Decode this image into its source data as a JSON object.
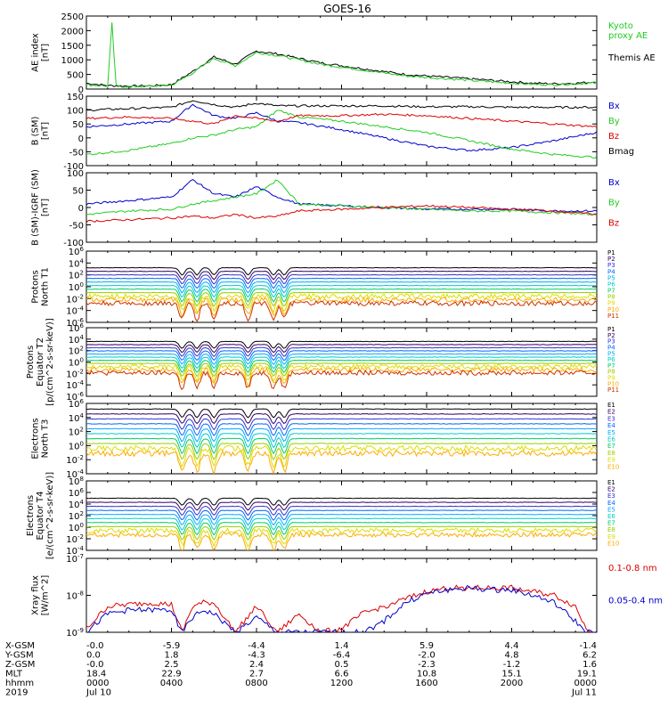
{
  "title": "GOES-16",
  "colors": {
    "black": "#000000",
    "blue": "#0000cc",
    "green": "#22cc22",
    "red": "#dd0000",
    "fluxRamp": [
      "#000000",
      "#330066",
      "#3333cc",
      "#0066ff",
      "#00aaff",
      "#00cccc",
      "#00cc66",
      "#99cc00",
      "#dddd00",
      "#ffaa00",
      "#cc3300"
    ]
  },
  "x_axis": {
    "time_labels": [
      "0000",
      "0400",
      "0800",
      "1200",
      "1600",
      "2000",
      "0000"
    ],
    "date_left": "Jul 10",
    "date_right": "Jul 11",
    "rows": [
      {
        "name": "X-GSM",
        "values": [
          "-0.0",
          "-5.9",
          "-4.4",
          "1.4",
          "5.9",
          "4.4",
          "-1.4"
        ]
      },
      {
        "name": "Y-GSM",
        "values": [
          "0.0",
          "1.8",
          "-4.3",
          "-6.4",
          "-2.0",
          "4.8",
          "6.2"
        ]
      },
      {
        "name": "Z-GSM",
        "values": [
          "-0.0",
          "2.5",
          "2.4",
          "0.5",
          "-2.3",
          "-1.2",
          "1.6"
        ]
      },
      {
        "name": "MLT",
        "values": [
          "18.4",
          "22.9",
          "2.7",
          "6.6",
          "10.8",
          "15.1",
          "19.1"
        ]
      },
      {
        "name": "hhmm",
        "values": [
          "0000",
          "0400",
          "0800",
          "1200",
          "1600",
          "2000",
          "0000"
        ]
      },
      {
        "name": "2019",
        "values": [
          "Jul 10",
          "",
          "",
          "",
          "",
          "",
          "Jul 11"
        ]
      }
    ]
  },
  "chart_data": [
    {
      "type": "line",
      "ylabel": "AE index\n[nT]",
      "ylim": [
        0,
        2500
      ],
      "y_ticks": [
        "0",
        "500",
        "1000",
        "1500",
        "2000",
        "2500"
      ],
      "legend": [
        {
          "text": "Kyoto\nproxy AE",
          "color": "#22cc22"
        },
        {
          "text": "Themis AE",
          "color": "#000000"
        }
      ],
      "series": [
        {
          "name": "Themis AE",
          "color": "#000000",
          "x": [
            0,
            1,
            2,
            3,
            4,
            5,
            6,
            7,
            8,
            9,
            10,
            11,
            12,
            13,
            14,
            15,
            16,
            17,
            18,
            19,
            20,
            21,
            22,
            23,
            24
          ],
          "y": [
            200,
            120,
            100,
            110,
            150,
            600,
            1100,
            850,
            1300,
            1200,
            1050,
            900,
            800,
            700,
            600,
            500,
            450,
            400,
            350,
            300,
            250,
            200,
            180,
            200,
            250
          ]
        },
        {
          "name": "Kyoto proxy AE",
          "color": "#22cc22",
          "x": [
            0,
            1,
            1.2,
            1.4,
            2,
            3,
            4,
            5,
            6,
            7,
            8,
            9,
            10,
            11,
            12,
            13,
            14,
            15,
            16,
            17,
            18,
            19,
            20,
            21,
            22,
            23,
            24
          ],
          "y": [
            150,
            100,
            2250,
            100,
            80,
            100,
            130,
            550,
            1050,
            800,
            1250,
            1150,
            1000,
            850,
            750,
            650,
            550,
            450,
            400,
            350,
            300,
            250,
            200,
            160,
            150,
            180,
            220
          ]
        }
      ]
    },
    {
      "type": "line",
      "ylabel": "B (SM)\n[nT]",
      "ylim": [
        -100,
        150
      ],
      "y_ticks": [
        "-100",
        "-50",
        "0",
        "50",
        "100",
        "150"
      ],
      "legend": [
        {
          "text": "Bx",
          "color": "#0000cc"
        },
        {
          "text": "By",
          "color": "#22cc22"
        },
        {
          "text": "Bz",
          "color": "#dd0000"
        },
        {
          "text": "Bmag",
          "color": "#000000"
        }
      ],
      "series": [
        {
          "name": "Bmag",
          "color": "#000000",
          "x": [
            0,
            2,
            4,
            5,
            6,
            7,
            8,
            9,
            10,
            12,
            14,
            16,
            18,
            20,
            22,
            24
          ],
          "y": [
            100,
            105,
            110,
            135,
            120,
            110,
            125,
            115,
            115,
            115,
            115,
            112,
            112,
            110,
            110,
            110
          ]
        },
        {
          "name": "Bx",
          "color": "#0000cc",
          "x": [
            0,
            2,
            4,
            5,
            6,
            7,
            8,
            9,
            10,
            12,
            14,
            16,
            18,
            20,
            22,
            24
          ],
          "y": [
            40,
            50,
            60,
            120,
            80,
            70,
            90,
            60,
            55,
            30,
            0,
            -30,
            -45,
            -35,
            -10,
            20
          ]
        },
        {
          "name": "By",
          "color": "#22cc22",
          "x": [
            0,
            2,
            4,
            5,
            6,
            7,
            8,
            9,
            10,
            12,
            14,
            16,
            18,
            20,
            22,
            24
          ],
          "y": [
            -60,
            -45,
            -20,
            0,
            10,
            30,
            40,
            100,
            75,
            60,
            40,
            20,
            -10,
            -40,
            -60,
            -70
          ]
        },
        {
          "name": "Bz",
          "color": "#dd0000",
          "x": [
            0,
            2,
            4,
            5,
            6,
            7,
            8,
            9,
            10,
            12,
            14,
            16,
            18,
            20,
            22,
            24
          ],
          "y": [
            70,
            75,
            70,
            60,
            50,
            80,
            70,
            60,
            80,
            80,
            85,
            80,
            70,
            60,
            50,
            40
          ]
        }
      ]
    },
    {
      "type": "line",
      "ylabel": "B (SM)-IGRF (SM)\n[nT]",
      "ylim": [
        -100,
        100
      ],
      "y_ticks": [
        "-100",
        "-50",
        "0",
        "50",
        "100"
      ],
      "legend": [
        {
          "text": "Bx",
          "color": "#0000cc"
        },
        {
          "text": "By",
          "color": "#22cc22"
        },
        {
          "text": "Bz",
          "color": "#dd0000"
        }
      ],
      "series": [
        {
          "name": "Bx",
          "color": "#0000cc",
          "x": [
            0,
            2,
            4,
            5,
            6,
            7,
            8,
            9,
            10,
            12,
            14,
            16,
            18,
            20,
            22,
            24
          ],
          "y": [
            10,
            20,
            30,
            80,
            40,
            30,
            60,
            30,
            10,
            5,
            0,
            -5,
            -5,
            -5,
            -10,
            -10
          ]
        },
        {
          "name": "By",
          "color": "#22cc22",
          "x": [
            0,
            2,
            4,
            5,
            6,
            7,
            8,
            9,
            10,
            12,
            14,
            16,
            18,
            20,
            22,
            24
          ],
          "y": [
            -20,
            -10,
            -5,
            10,
            20,
            30,
            40,
            80,
            10,
            5,
            0,
            -5,
            -10,
            -10,
            -15,
            -20
          ]
        },
        {
          "name": "Bz",
          "color": "#dd0000",
          "x": [
            0,
            2,
            4,
            5,
            6,
            7,
            8,
            9,
            10,
            12,
            14,
            16,
            18,
            20,
            22,
            24
          ],
          "y": [
            -40,
            -35,
            -30,
            -25,
            -30,
            -20,
            -30,
            -25,
            -10,
            -5,
            0,
            5,
            0,
            -5,
            -10,
            -20
          ]
        }
      ]
    },
    {
      "type": "line",
      "ylabel": "Protons\nNorth T1",
      "log": true,
      "ylim_exp": [
        -6,
        6
      ],
      "y_ticks": [
        "10^-6",
        "10^-4",
        "10^-2",
        "10^0",
        "10^2",
        "10^4",
        "10^6"
      ],
      "legend": [
        "P1",
        "P2",
        "P3",
        "P4",
        "P5",
        "P6",
        "P7",
        "P8",
        "P9",
        "P10",
        "P11"
      ],
      "top_log": 3.2,
      "step": 0.6,
      "noise_from": 8
    },
    {
      "type": "line",
      "ylabel": "Protons\nEquator T2\n[p/(cm^2-s-sr-keV)]",
      "log": true,
      "ylim_exp": [
        -6,
        6
      ],
      "y_ticks": [
        "10^-6",
        "10^-4",
        "10^-2",
        "10^0",
        "10^2",
        "10^4",
        "10^6"
      ],
      "legend": [
        "P1",
        "P2",
        "P3",
        "P4",
        "P5",
        "P6",
        "P7",
        "P8",
        "P9",
        "P10",
        "P11"
      ],
      "top_log": 3.6,
      "step": 0.55,
      "noise_from": 8
    },
    {
      "type": "line",
      "ylabel": "Electrons\nNorth T3",
      "log": true,
      "ylim_exp": [
        -4,
        6
      ],
      "y_ticks": [
        "10^-4",
        "10^-2",
        "10^0",
        "10^2",
        "10^4",
        "10^6"
      ],
      "legend": [
        "E1",
        "E2",
        "E3",
        "E4",
        "E5",
        "E6",
        "E7",
        "E8",
        "E9",
        "E10"
      ],
      "top_log": 5.2,
      "step": 0.7,
      "noise_from": 8
    },
    {
      "type": "line",
      "ylabel": "Electrons\nEquator T4\n[e/(cm^2-s-sr-keV)]",
      "log": true,
      "ylim_exp": [
        -4,
        8
      ],
      "y_ticks": [
        "10^-4",
        "10^-2",
        "10^0",
        "10^2",
        "10^4",
        "10^6",
        "10^8"
      ],
      "legend": [
        "E1",
        "E2",
        "E3",
        "E4",
        "E5",
        "E6",
        "E7",
        "E8",
        "E9",
        "E10"
      ],
      "top_log": 5.0,
      "step": 0.7,
      "noise_from": 8
    },
    {
      "type": "line",
      "ylabel": "Xray flux\n[W/m^2]",
      "log": true,
      "ylim_exp": [
        -9,
        -7
      ],
      "y_ticks": [
        "10^-9",
        "10^-8",
        "10^-7"
      ],
      "legend": [
        {
          "text": "0.1-0.8 nm",
          "color": "#dd0000"
        },
        {
          "text": "0.05-0.4 nm",
          "color": "#0000cc"
        }
      ],
      "series": [
        {
          "name": "0.1-0.8 nm",
          "color": "#dd0000",
          "x": [
            0,
            1,
            2,
            3,
            4,
            4.5,
            5,
            5.5,
            6,
            7,
            8,
            9,
            10,
            11,
            12,
            13,
            14,
            15,
            16,
            17,
            18,
            19,
            20,
            21,
            22,
            23,
            23.5,
            24
          ],
          "y": [
            -8.9,
            -8.3,
            -8.25,
            -8.2,
            -8.25,
            -9.0,
            -8.3,
            -8.2,
            -8.2,
            -9.0,
            -8.3,
            -9.0,
            -8.5,
            -9.0,
            -8.9,
            -8.5,
            -8.3,
            -8.1,
            -7.9,
            -7.8,
            -7.8,
            -7.8,
            -7.8,
            -7.9,
            -8.0,
            -8.3,
            -8.9,
            -9.0
          ]
        },
        {
          "name": "0.05-0.4 nm",
          "color": "#0000cc",
          "x": [
            0,
            1,
            2,
            3,
            4,
            4.5,
            5,
            5.5,
            6,
            7,
            8,
            9,
            10,
            11,
            12,
            13,
            14,
            15,
            16,
            17,
            18,
            19,
            20,
            21,
            22,
            23,
            23.5,
            24
          ],
          "y": [
            -9.0,
            -8.5,
            -8.4,
            -8.4,
            -8.4,
            -9.0,
            -8.6,
            -8.4,
            -8.5,
            -9.0,
            -8.6,
            -9.0,
            -9.0,
            -9.0,
            -9.0,
            -9.0,
            -8.7,
            -8.2,
            -7.95,
            -7.85,
            -7.8,
            -7.85,
            -7.85,
            -8.0,
            -8.2,
            -8.7,
            -9.0,
            -9.0
          ]
        }
      ]
    }
  ]
}
